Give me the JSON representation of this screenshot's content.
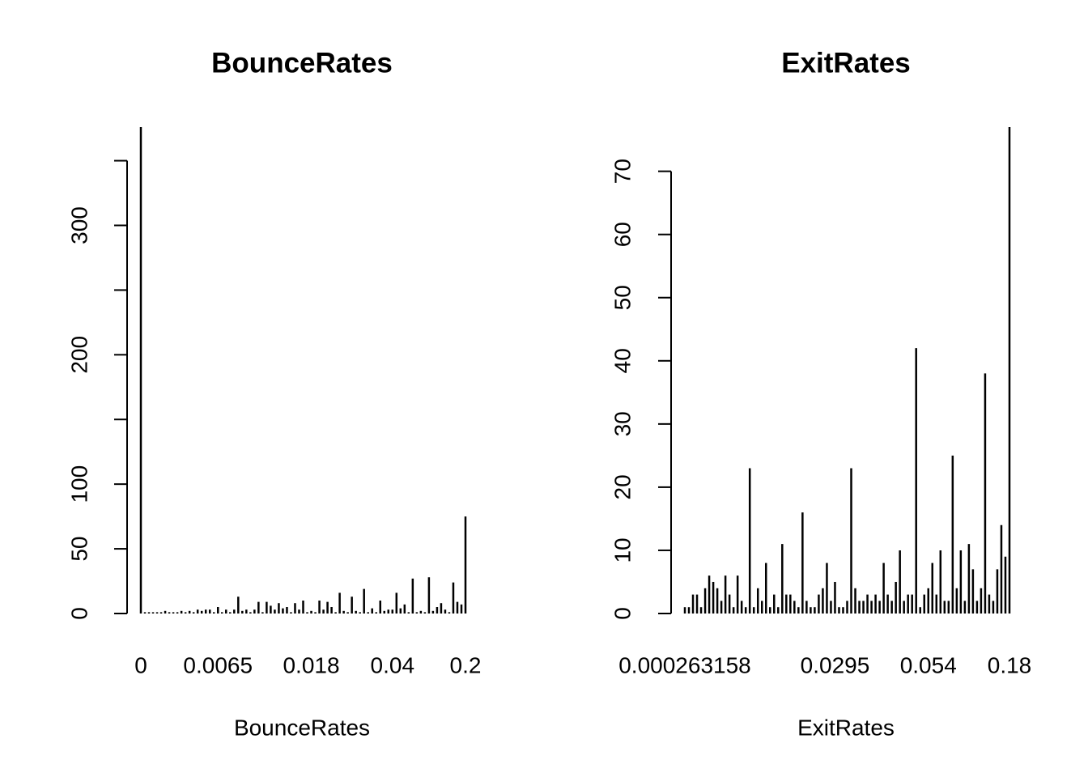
{
  "chart_data": [
    {
      "type": "bar",
      "title": "BounceRates",
      "xlabel": "BounceRates",
      "color": "#000000",
      "categories": [
        "0",
        null,
        null,
        null,
        null,
        null,
        null,
        null,
        null,
        null,
        null,
        null,
        null,
        null,
        null,
        null,
        null,
        null,
        null,
        "0.0065",
        null,
        null,
        null,
        null,
        null,
        null,
        null,
        null,
        null,
        null,
        null,
        null,
        null,
        null,
        null,
        null,
        null,
        null,
        null,
        null,
        null,
        null,
        "0.018",
        null,
        null,
        null,
        null,
        null,
        null,
        null,
        null,
        null,
        null,
        null,
        null,
        null,
        null,
        null,
        null,
        null,
        null,
        null,
        "0.04",
        null,
        null,
        null,
        null,
        null,
        null,
        null,
        null,
        null,
        null,
        null,
        null,
        null,
        null,
        null,
        null,
        null,
        "0.2"
      ],
      "values": [
        376,
        1,
        1,
        1,
        1,
        1,
        2,
        1,
        1,
        1,
        2,
        1,
        2,
        1,
        3,
        2,
        3,
        3,
        1,
        5,
        1,
        3,
        1,
        3,
        13,
        2,
        3,
        1,
        3,
        9,
        1,
        9,
        6,
        3,
        8,
        4,
        5,
        1,
        8,
        3,
        10,
        1,
        2,
        1,
        10,
        3,
        9,
        5,
        1,
        16,
        2,
        1,
        13,
        2,
        1,
        19,
        1,
        4,
        1,
        10,
        2,
        3,
        3,
        16,
        4,
        7,
        1,
        27,
        1,
        2,
        1,
        28,
        2,
        5,
        8,
        3,
        1,
        24,
        9,
        7,
        75
      ],
      "ylim": [
        0,
        376
      ],
      "yticks": [
        0,
        50,
        100,
        200,
        300
      ],
      "yticks_minor": [
        150,
        250,
        350
      ]
    },
    {
      "type": "bar",
      "title": "ExitRates",
      "xlabel": "ExitRates",
      "color": "#000000",
      "categories": [
        "0.000263158",
        null,
        null,
        null,
        null,
        null,
        null,
        null,
        null,
        null,
        null,
        null,
        null,
        null,
        null,
        null,
        null,
        null,
        null,
        null,
        null,
        null,
        null,
        null,
        null,
        null,
        null,
        null,
        null,
        null,
        null,
        null,
        null,
        null,
        null,
        null,
        null,
        "0.0295",
        null,
        null,
        null,
        null,
        null,
        null,
        null,
        null,
        null,
        null,
        null,
        null,
        null,
        null,
        null,
        null,
        null,
        null,
        null,
        null,
        null,
        null,
        "0.054",
        null,
        null,
        null,
        null,
        null,
        null,
        null,
        null,
        null,
        null,
        null,
        null,
        null,
        null,
        null,
        null,
        null,
        null,
        null,
        "0.18"
      ],
      "values": [
        1,
        1,
        3,
        3,
        1,
        4,
        6,
        5,
        4,
        2,
        6,
        3,
        1,
        6,
        2,
        1,
        23,
        1,
        4,
        2,
        8,
        1,
        3,
        1,
        11,
        3,
        3,
        2,
        1,
        16,
        2,
        1,
        1,
        3,
        4,
        8,
        2,
        5,
        1,
        1,
        2,
        23,
        4,
        2,
        2,
        3,
        2,
        3,
        2,
        8,
        3,
        2,
        5,
        10,
        2,
        3,
        3,
        42,
        1,
        3,
        4,
        8,
        3,
        10,
        2,
        2,
        25,
        4,
        10,
        2,
        11,
        7,
        2,
        4,
        38,
        3,
        2,
        7,
        14,
        9,
        77
      ],
      "ylim": [
        0,
        77
      ],
      "yticks": [
        0,
        10,
        20,
        30,
        40,
        50,
        60,
        70
      ],
      "yticks_minor": []
    }
  ]
}
